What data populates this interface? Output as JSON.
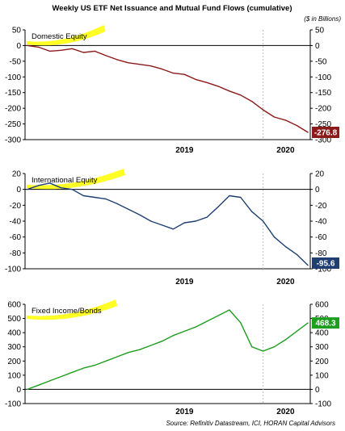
{
  "header": {
    "title": "Weekly US ETF Net Issuance and Mutual Fund Flows (cumulative)",
    "units": "($ in Billions)"
  },
  "footer": {
    "source": "Source: Refinitiv Datastream, ICI, HORAN Capital Advisors"
  },
  "colors": {
    "highlight": "#ffff00",
    "axis": "#000000",
    "year_divider": "#bfbfbf"
  },
  "chart_data": [
    {
      "type": "line",
      "title": "Domestic Equity",
      "x_ticks": [
        "2019",
        "2020"
      ],
      "ylim": [
        -300,
        50
      ],
      "y_ticks": [
        50,
        0,
        -50,
        -100,
        -150,
        -200,
        -250,
        -300
      ],
      "y_tick_labels": [
        "50",
        "0",
        "-50",
        "-100",
        "-150",
        "-200",
        "-250",
        "-300"
      ],
      "color": "#8b1a1a",
      "last_value_label": "-276.8",
      "x": [
        "2018-04",
        "2018-05",
        "2018-06",
        "2018-07",
        "2018-08",
        "2018-09",
        "2018-10",
        "2018-11",
        "2018-12",
        "2019-01",
        "2019-02",
        "2019-03",
        "2019-04",
        "2019-05",
        "2019-06",
        "2019-07",
        "2019-08",
        "2019-09",
        "2019-10",
        "2019-11",
        "2019-12",
        "2020-01",
        "2020-02",
        "2020-03",
        "2020-04",
        "2020-05"
      ],
      "values": [
        0,
        -5,
        -18,
        -15,
        -10,
        -22,
        -18,
        -32,
        -45,
        -55,
        -60,
        -65,
        -75,
        -88,
        -92,
        -108,
        -118,
        -130,
        -145,
        -158,
        -178,
        -205,
        -228,
        -238,
        -255,
        -276.8
      ]
    },
    {
      "type": "line",
      "title": "International Equity",
      "x_ticks": [
        "2019",
        "2020"
      ],
      "ylim": [
        -100,
        20
      ],
      "y_ticks": [
        20,
        0,
        -20,
        -40,
        -60,
        -80,
        -100
      ],
      "y_tick_labels": [
        "20",
        "0",
        "-20",
        "-40",
        "-60",
        "-80",
        "-100"
      ],
      "color": "#1f3f73",
      "last_value_label": "-95.6",
      "x": [
        "2018-04",
        "2018-05",
        "2018-06",
        "2018-07",
        "2018-08",
        "2018-09",
        "2018-10",
        "2018-11",
        "2018-12",
        "2019-01",
        "2019-02",
        "2019-03",
        "2019-04",
        "2019-05",
        "2019-06",
        "2019-07",
        "2019-08",
        "2019-09",
        "2019-10",
        "2019-11",
        "2019-12",
        "2020-01",
        "2020-02",
        "2020-03",
        "2020-04",
        "2020-05"
      ],
      "values": [
        0,
        5,
        8,
        2,
        0,
        -8,
        -10,
        -12,
        -18,
        -25,
        -32,
        -40,
        -45,
        -50,
        -42,
        -40,
        -35,
        -22,
        -8,
        -10,
        -28,
        -40,
        -60,
        -72,
        -82,
        -95.6
      ]
    },
    {
      "type": "line",
      "title": "Fixed Income/Bonds",
      "x_ticks": [
        "2019",
        "2020"
      ],
      "ylim": [
        -100,
        600
      ],
      "y_ticks": [
        600,
        500,
        400,
        300,
        200,
        100,
        0,
        -100
      ],
      "y_tick_labels": [
        "600",
        "500",
        "400",
        "300",
        "200",
        "100",
        "0",
        "-100"
      ],
      "color": "#1e9e1e",
      "last_value_label": "468.3",
      "x": [
        "2018-04",
        "2018-05",
        "2018-06",
        "2018-07",
        "2018-08",
        "2018-09",
        "2018-10",
        "2018-11",
        "2018-12",
        "2019-01",
        "2019-02",
        "2019-03",
        "2019-04",
        "2019-05",
        "2019-06",
        "2019-07",
        "2019-08",
        "2019-09",
        "2019-10",
        "2019-11",
        "2019-12",
        "2020-01",
        "2020-02",
        "2020-03",
        "2020-04",
        "2020-05"
      ],
      "values": [
        0,
        30,
        60,
        90,
        120,
        150,
        170,
        200,
        230,
        260,
        280,
        310,
        340,
        380,
        410,
        440,
        480,
        520,
        560,
        470,
        300,
        270,
        300,
        350,
        410,
        468.3
      ]
    }
  ]
}
